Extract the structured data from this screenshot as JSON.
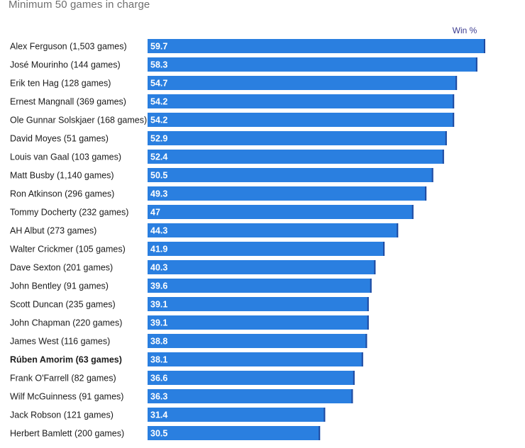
{
  "chart_data": {
    "type": "bar",
    "orientation": "horizontal",
    "subtitle": "Minimum 50 games in charge",
    "value_header": "Win %",
    "xlim": [
      0,
      59.7
    ],
    "highlighted": "Rúben Amorim (63 games)",
    "bar_color": "#2a7fe0",
    "bar_edge_color": "#1f4aa0",
    "categories": [
      "Alex Ferguson (1,503 games)",
      "José Mourinho (144 games)",
      "Erik ten Hag (128 games)",
      "Ernest Mangnall (369 games)",
      "Ole Gunnar Solskjaer (168 games)",
      "David Moyes (51 games)",
      "Louis van Gaal (103 games)",
      "Matt Busby (1,140 games)",
      "Ron Atkinson (296 games)",
      "Tommy Docherty (232 games)",
      "AH Albut (273 games)",
      "Walter Crickmer (105 games)",
      "Dave Sexton (201 games)",
      "John Bentley (91 games)",
      "Scott Duncan (235 games)",
      "John Chapman (220 games)",
      "James West (116 games)",
      "Rúben Amorim (63 games)",
      "Frank O'Farrell (82 games)",
      "Wilf McGuinness (91 games)",
      "Jack Robson (121 games)",
      "Herbert Bamlett (200 games)"
    ],
    "values": [
      59.7,
      58.3,
      54.7,
      54.2,
      54.2,
      52.9,
      52.4,
      50.5,
      49.3,
      47,
      44.3,
      41.9,
      40.3,
      39.6,
      39.1,
      39.1,
      38.8,
      38.1,
      36.6,
      36.3,
      31.4,
      30.5
    ],
    "value_labels": [
      "59.7",
      "58.3",
      "54.7",
      "54.2",
      "54.2",
      "52.9",
      "52.4",
      "50.5",
      "49.3",
      "47",
      "44.3",
      "41.9",
      "40.3",
      "39.6",
      "39.1",
      "39.1",
      "38.8",
      "38.1",
      "36.6",
      "36.3",
      "31.4",
      "30.5"
    ]
  }
}
